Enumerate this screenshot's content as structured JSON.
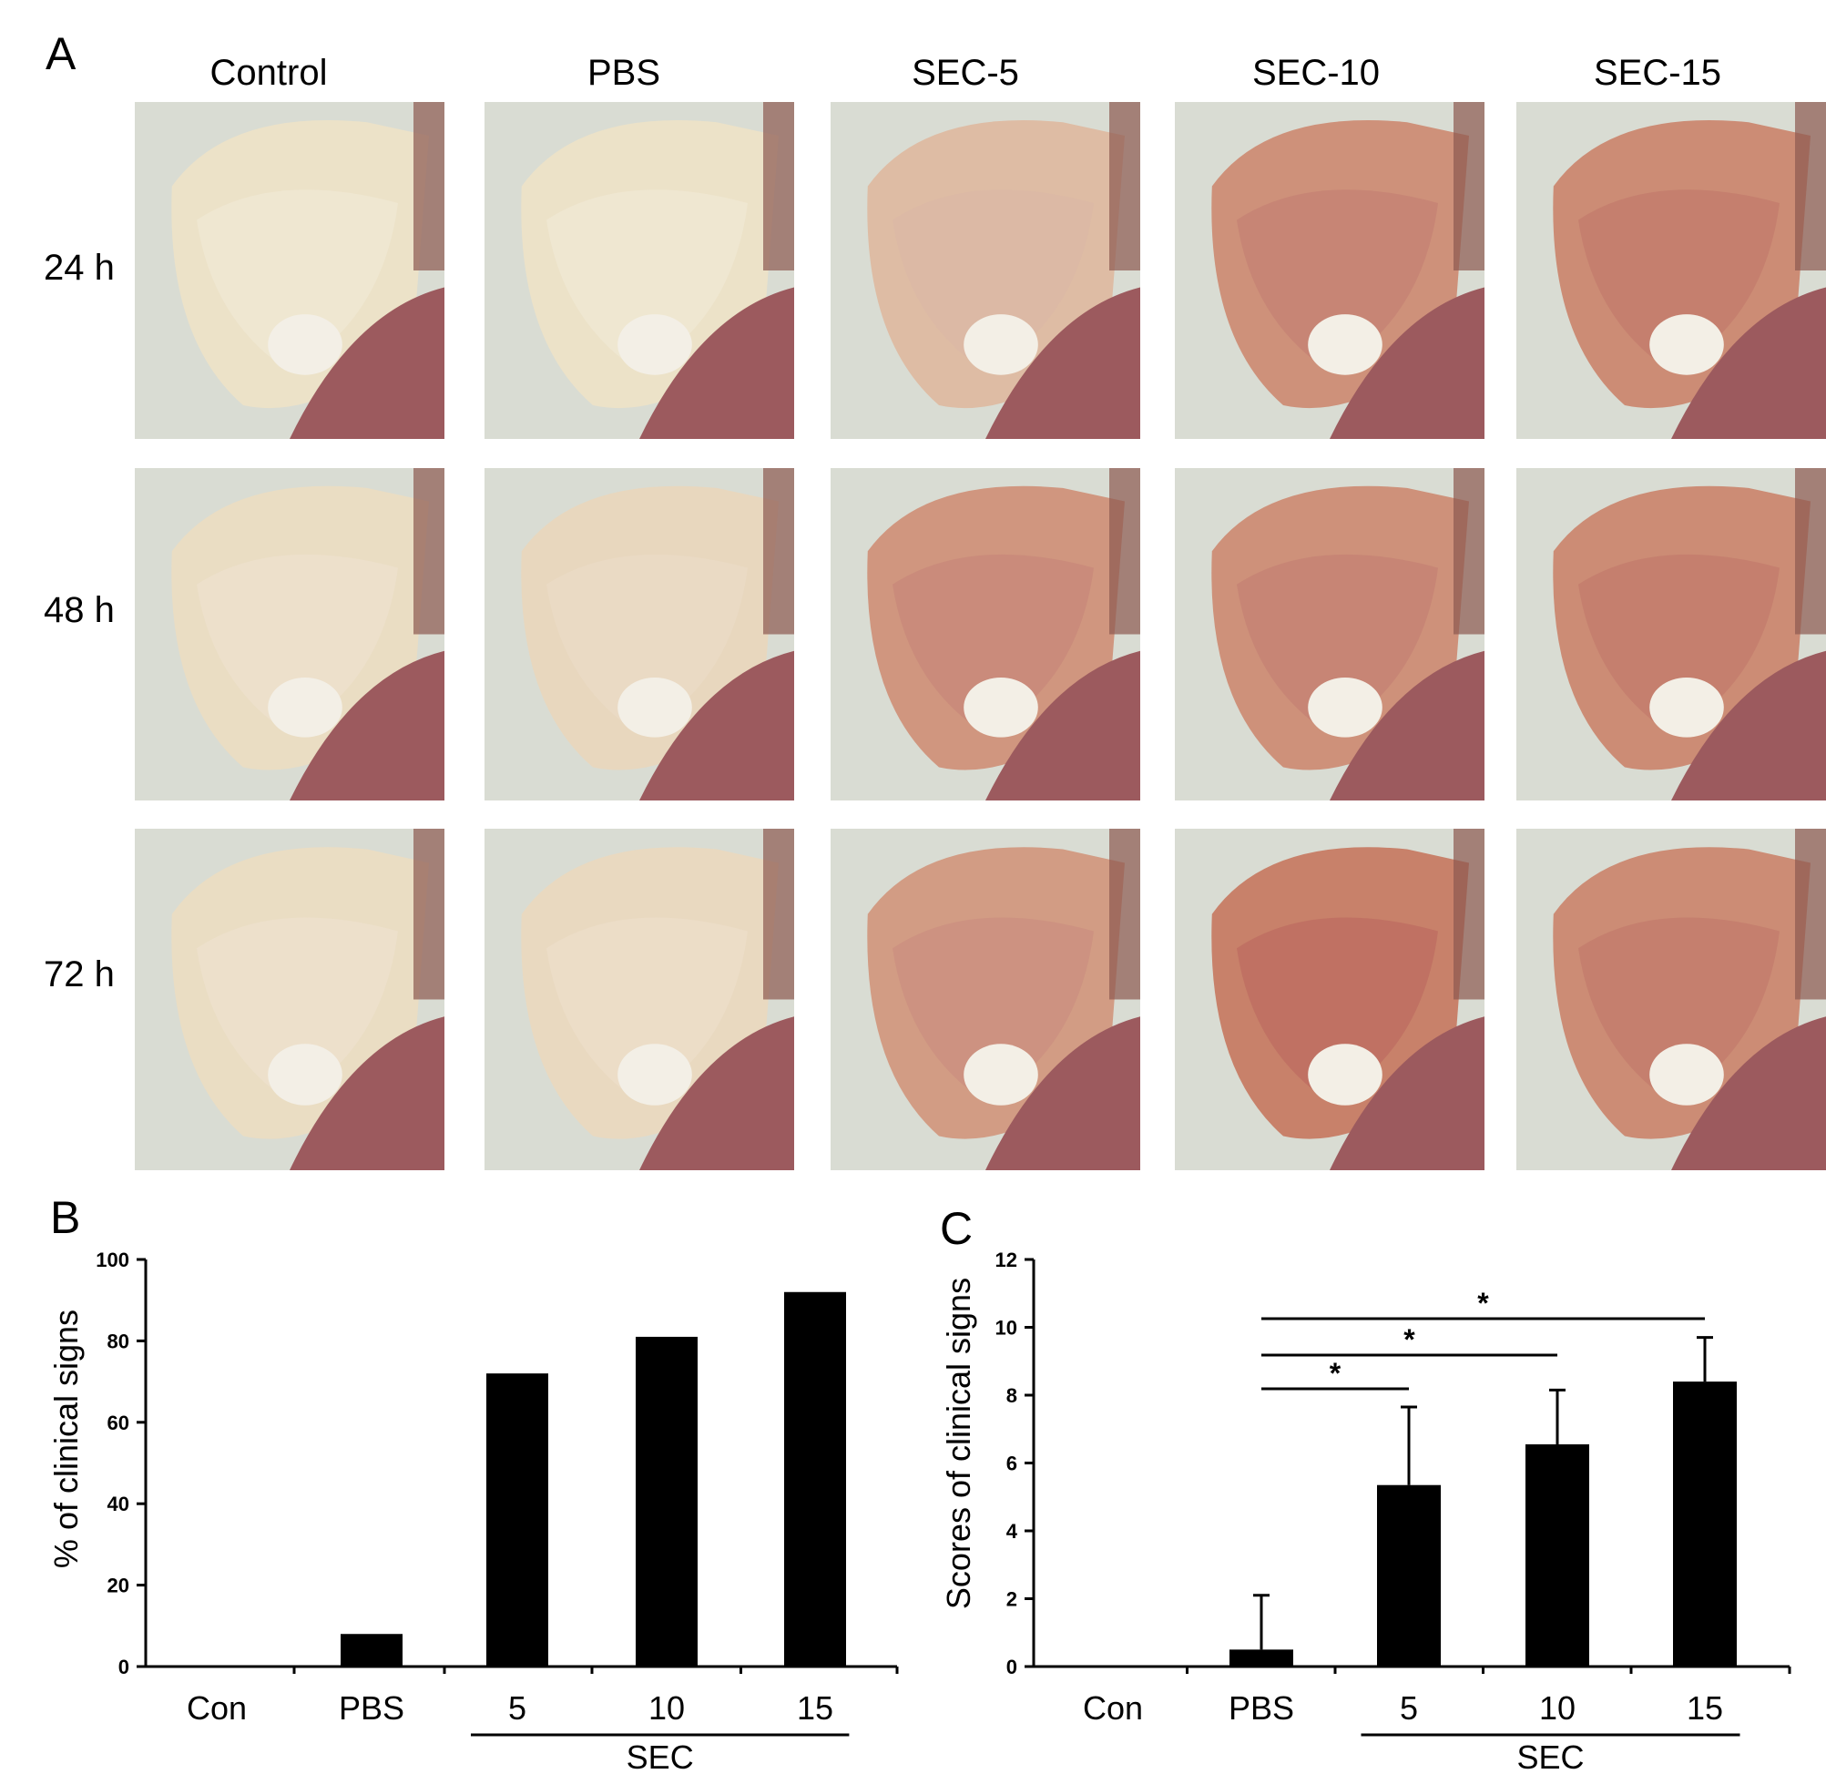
{
  "panelA": {
    "letter": "A",
    "columns": [
      "Control",
      "PBS",
      "SEC-5",
      "SEC-10",
      "SEC-15"
    ],
    "rows": [
      "24 h",
      "48 h",
      "72 h"
    ]
  },
  "panelB": {
    "letter": "B",
    "chart_data": {
      "type": "bar",
      "categories": [
        "Con",
        "PBS",
        "5",
        "10",
        "15"
      ],
      "group_label": "SEC",
      "values": [
        0,
        8,
        72,
        81,
        92
      ],
      "ylabel": "% of clinical signs",
      "ylim": [
        0,
        100
      ],
      "yticks": [
        0,
        20,
        40,
        60,
        80,
        100
      ]
    }
  },
  "panelC": {
    "letter": "C",
    "chart_data": {
      "type": "bar",
      "categories": [
        "Con",
        "PBS",
        "5",
        "10",
        "15"
      ],
      "group_label": "SEC",
      "values": [
        0,
        0.5,
        5.35,
        6.55,
        8.4
      ],
      "errors": [
        0,
        1.6,
        2.3,
        1.6,
        1.3
      ],
      "ylabel": "Scores of clinical signs",
      "ylim": [
        0,
        12
      ],
      "yticks": [
        0,
        2,
        4,
        6,
        8,
        10,
        12
      ],
      "significance": [
        {
          "from": "PBS",
          "to": "5",
          "label": "*"
        },
        {
          "from": "PBS",
          "to": "10",
          "label": "*"
        },
        {
          "from": "PBS",
          "to": "15",
          "label": "*"
        }
      ]
    }
  }
}
